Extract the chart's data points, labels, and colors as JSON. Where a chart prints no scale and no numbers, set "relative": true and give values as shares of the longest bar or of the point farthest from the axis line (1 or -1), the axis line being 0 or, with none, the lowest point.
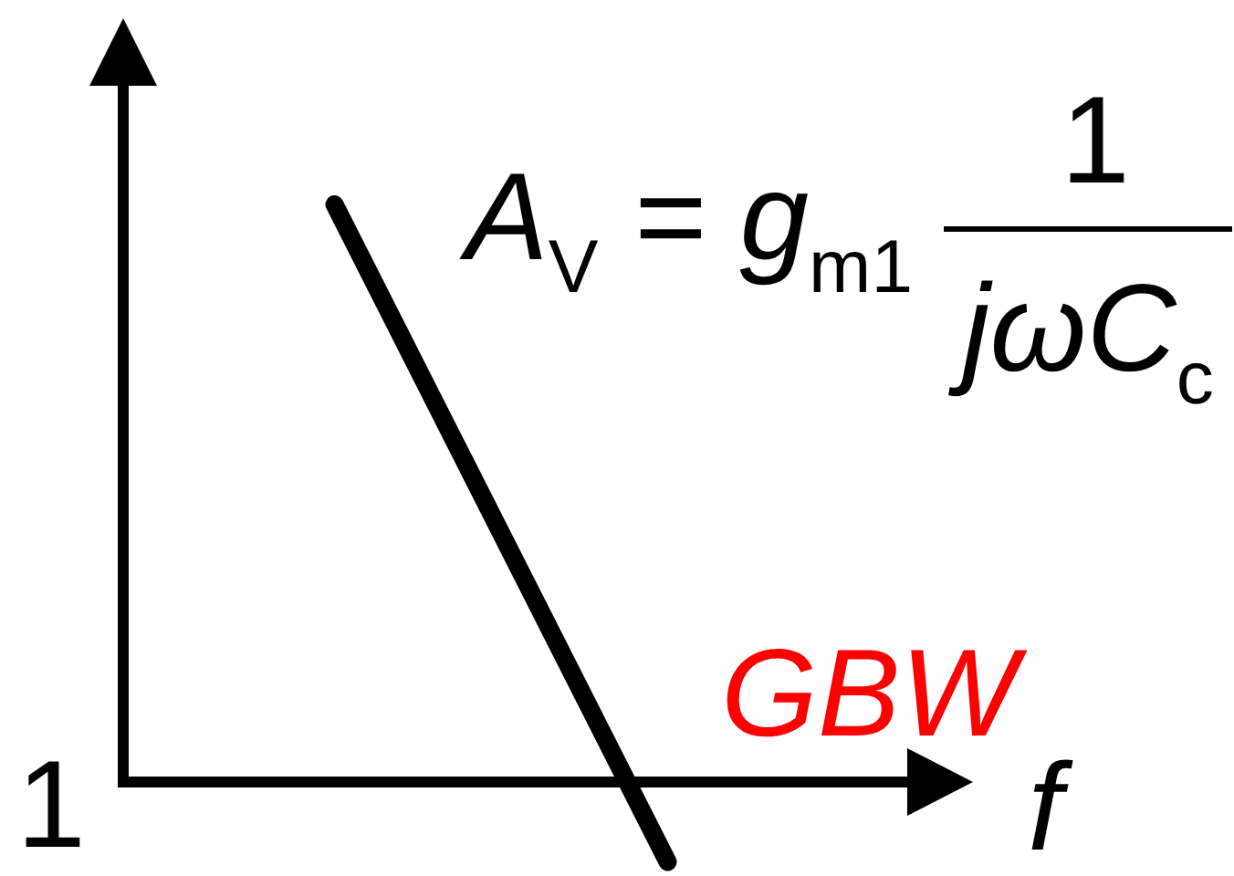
{
  "chart_data": {
    "type": "line",
    "relative": true,
    "categories": [
      null,
      null
    ],
    "series": [
      {
        "color": "#000000",
        "values": [
          1,
          -0.14
        ]
      }
    ],
    "xlabel": "f",
    "annotations": [
      "A$_{V}$ = g$_{m1}$",
      "1",
      "jωC$_{c}$",
      "GBW",
      "1"
    ]
  }
}
